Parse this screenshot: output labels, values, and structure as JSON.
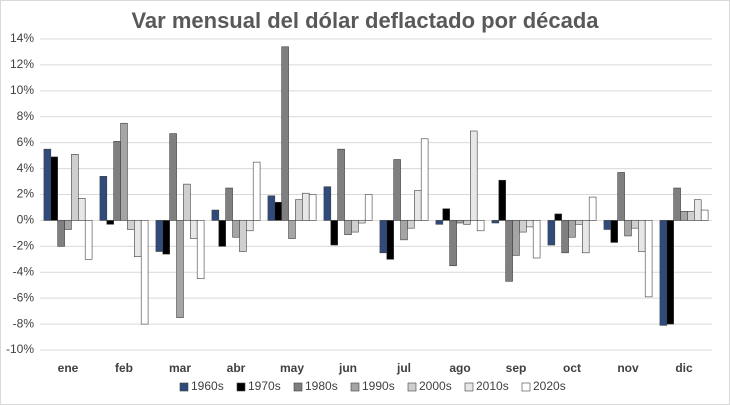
{
  "chart_data": {
    "type": "bar",
    "title": "Var mensual del dólar deflactado por década",
    "categories": [
      "ene",
      "feb",
      "mar",
      "abr",
      "may",
      "jun",
      "jul",
      "ago",
      "sep",
      "oct",
      "nov",
      "dic"
    ],
    "series": [
      {
        "name": "1960s",
        "color": "#2f4b7c",
        "values": [
          5.5,
          3.4,
          -2.4,
          0.8,
          1.9,
          2.6,
          -2.5,
          -0.3,
          -0.2,
          -1.9,
          -0.7,
          -8.1
        ]
      },
      {
        "name": "1970s",
        "color": "#000000",
        "values": [
          4.9,
          -0.3,
          -2.6,
          -2.0,
          1.4,
          -1.9,
          -3.0,
          0.9,
          3.1,
          0.5,
          -1.7,
          -8.0
        ]
      },
      {
        "name": "1980s",
        "color": "#7f7f7f",
        "values": [
          -2.0,
          6.1,
          6.7,
          2.5,
          13.4,
          5.5,
          4.7,
          -3.5,
          -4.7,
          -2.5,
          3.7,
          2.5
        ]
      },
      {
        "name": "1990s",
        "color": "#a5a5a5",
        "values": [
          -0.7,
          7.5,
          -7.5,
          -1.3,
          -1.4,
          -1.1,
          -1.5,
          -0.2,
          -2.7,
          -1.3,
          -1.2,
          0.7
        ]
      },
      {
        "name": "2000s",
        "color": "#cfcfcf",
        "values": [
          5.1,
          -0.7,
          2.8,
          -2.4,
          1.6,
          -0.9,
          -0.6,
          -0.3,
          -0.9,
          -0.3,
          -0.6,
          0.7
        ]
      },
      {
        "name": "2010s",
        "color": "#e7e7e7",
        "values": [
          1.7,
          -2.8,
          -1.4,
          -0.8,
          2.1,
          -0.2,
          2.3,
          6.9,
          -0.5,
          -2.5,
          -2.4,
          1.6
        ]
      },
      {
        "name": "2020s",
        "color": "#ffffff",
        "values": [
          -3.0,
          -8.0,
          -4.5,
          4.5,
          2.0,
          2.0,
          6.3,
          -0.8,
          -2.9,
          1.8,
          -5.9,
          0.8
        ]
      }
    ],
    "ylim": [
      -10,
      14
    ],
    "yticks": [
      {
        "value": -10,
        "label": "-10%"
      },
      {
        "value": -8,
        "label": "-8%"
      },
      {
        "value": -6,
        "label": "-6%"
      },
      {
        "value": -4,
        "label": "-4%"
      },
      {
        "value": -2,
        "label": "-2%"
      },
      {
        "value": 0,
        "label": "0%"
      },
      {
        "value": 2,
        "label": "2%"
      },
      {
        "value": 4,
        "label": "4%"
      },
      {
        "value": 6,
        "label": "6%"
      },
      {
        "value": 8,
        "label": "8%"
      },
      {
        "value": 10,
        "label": "10%"
      },
      {
        "value": 12,
        "label": "12%"
      },
      {
        "value": 14,
        "label": "14%"
      }
    ],
    "grid": true,
    "legend": "bottom"
  }
}
